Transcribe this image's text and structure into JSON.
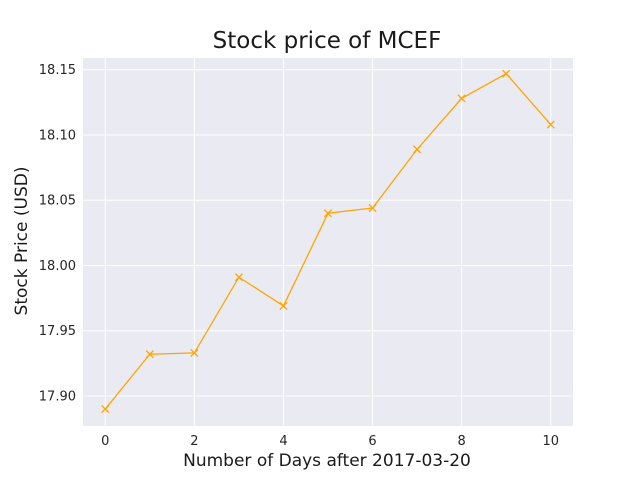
{
  "chart_data": {
    "type": "line",
    "title": "Stock price of MCEF",
    "xlabel": "Number of Days after 2017-03-20",
    "ylabel": "Stock Price (USD)",
    "x": [
      0,
      1,
      2,
      3,
      4,
      5,
      6,
      7,
      8,
      9,
      10
    ],
    "series": [
      {
        "values": [
          17.89,
          17.932,
          17.933,
          17.991,
          17.969,
          18.04,
          18.044,
          18.089,
          18.128,
          18.147,
          18.108
        ],
        "color": "#ffa500",
        "marker": "x"
      }
    ],
    "xlim": [
      -0.5,
      10.5
    ],
    "ylim": [
      17.877,
      18.159
    ],
    "xticks": [
      0,
      2,
      4,
      6,
      8,
      10
    ],
    "yticks": [
      17.9,
      17.95,
      18.0,
      18.05,
      18.1,
      18.15
    ],
    "ytick_labels": [
      "17.90",
      "17.95",
      "18.00",
      "18.05",
      "18.10",
      "18.15"
    ],
    "grid": true,
    "background": "#eaeaf2"
  }
}
